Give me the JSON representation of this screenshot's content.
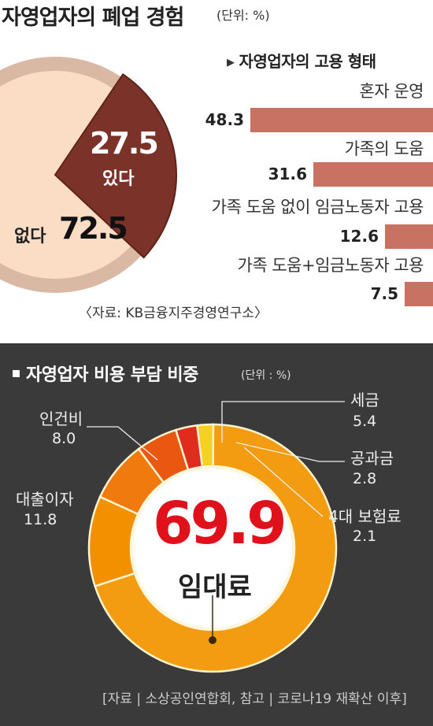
{
  "top": {
    "title": "자영업자의 폐업 경험",
    "unit": "(단위: %)",
    "source": "〈자료: KB금융지주경영연구소〉"
  },
  "bottom": {
    "title": "자영업자 비용 부담 비중",
    "unit": "(단위 : %)",
    "source": "[자료 | 소상공인연합회, 참고 | 코로나19 재확산 이후]"
  },
  "colors": {
    "pie_yes": "#7b3329",
    "pie_no": "#fbdcc4",
    "pie_rim": "#d9b9a3",
    "hbar": "#c87264",
    "donut_rent": "#f39c12",
    "donut_loan": "#f29000",
    "donut_labor": "#f07a0d",
    "donut_tax": "#e95710",
    "donut_utility": "#e02c1d",
    "donut_insurance": "#f8d021",
    "big_value": "#e0111b",
    "bottom_bg": "#3a3a3a"
  },
  "chart_data": [
    {
      "type": "pie",
      "title": "자영업자의 폐업 경험",
      "unit": "(단위: %)",
      "slices": [
        {
          "label": "있다",
          "value": 27.5,
          "display": "27.5"
        },
        {
          "label": "없다",
          "value": 72.5,
          "display": "72.5"
        }
      ]
    },
    {
      "type": "bar",
      "orientation": "horizontal",
      "title": "자영업자의 고용 형태",
      "categories": [
        "혼자 운영",
        "가족의 도움",
        "가족 도움 없이 임금노동자 고용",
        "가족 도움+임금노동자 고용"
      ],
      "values": [
        48.3,
        31.6,
        12.6,
        7.5
      ],
      "value_labels": [
        "48.3",
        "31.6",
        "12.6",
        "7.5"
      ]
    },
    {
      "type": "pie",
      "subtype": "donut",
      "title": "자영업자 비용 부담 비중",
      "unit": "(단위 : %)",
      "slices": [
        {
          "label": "임대료",
          "value": 69.9,
          "display": "69.9"
        },
        {
          "label": "대출이자",
          "value": 11.8,
          "display": "11.8"
        },
        {
          "label": "인건비",
          "value": 8.0,
          "display": "8.0"
        },
        {
          "label": "세금",
          "value": 5.4,
          "display": "5.4"
        },
        {
          "label": "공과금",
          "value": 2.8,
          "display": "2.8"
        },
        {
          "label": "4대 보험료",
          "value": 2.1,
          "display": "2.1"
        }
      ]
    }
  ]
}
